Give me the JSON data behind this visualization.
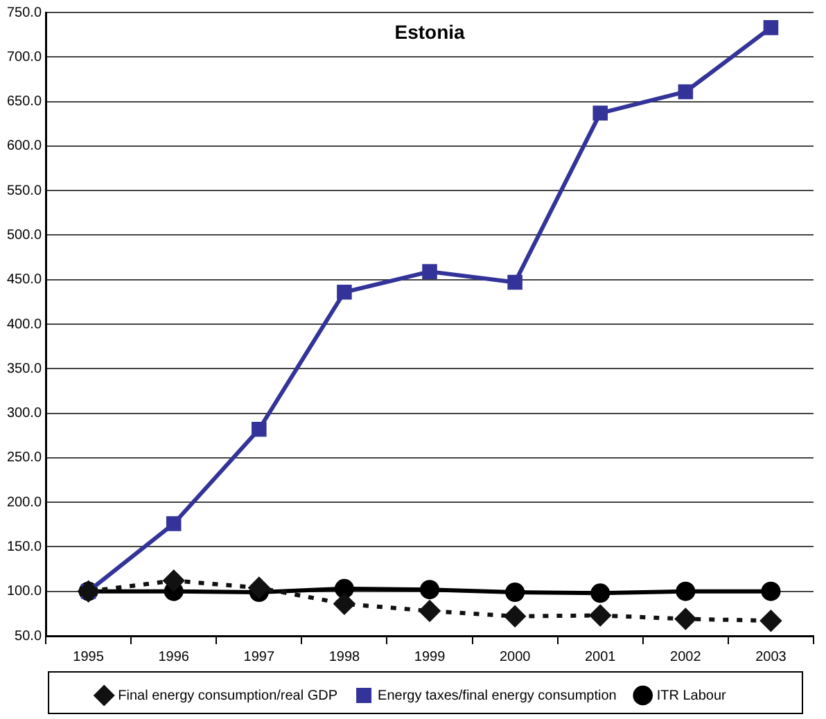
{
  "chart_data": {
    "type": "line",
    "title": "Estonia",
    "categories": [
      "1995",
      "1996",
      "1997",
      "1998",
      "1999",
      "2000",
      "2001",
      "2002",
      "2003"
    ],
    "series": [
      {
        "name": "Final energy consumption/real GDP",
        "color": "#111111",
        "marker": "diamond",
        "line_style": "dotted",
        "values": [
          100,
          112,
          104,
          86,
          78,
          72,
          73,
          69,
          67
        ]
      },
      {
        "name": "Energy taxes/final energy consumption",
        "color": "#333399",
        "marker": "square",
        "line_style": "solid",
        "values": [
          100,
          176,
          282,
          436,
          459,
          447,
          637,
          661,
          733
        ]
      },
      {
        "name": "ITR Labour",
        "color": "#000000",
        "marker": "circle",
        "line_style": "solid",
        "values": [
          100,
          100,
          99,
          103,
          102,
          99,
          98,
          100,
          100
        ]
      }
    ],
    "ylim": [
      50,
      750
    ],
    "yticks": [
      {
        "value": 50,
        "label": "50.0"
      },
      {
        "value": 100,
        "label": "100.0"
      },
      {
        "value": 150,
        "label": "150.0"
      },
      {
        "value": 200,
        "label": "200.0"
      },
      {
        "value": 250,
        "label": "250.0"
      },
      {
        "value": 300,
        "label": "300.0"
      },
      {
        "value": 350,
        "label": "350.0"
      },
      {
        "value": 400,
        "label": "400.0"
      },
      {
        "value": 450,
        "label": "450.0"
      },
      {
        "value": 500,
        "label": "500.0"
      },
      {
        "value": 550,
        "label": "550.0"
      },
      {
        "value": 600,
        "label": "600.0"
      },
      {
        "value": 650,
        "label": "650.0"
      },
      {
        "value": 700,
        "label": "700.0"
      },
      {
        "value": 750,
        "label": "750.0"
      }
    ],
    "grid": "y",
    "legend": "bottom"
  }
}
